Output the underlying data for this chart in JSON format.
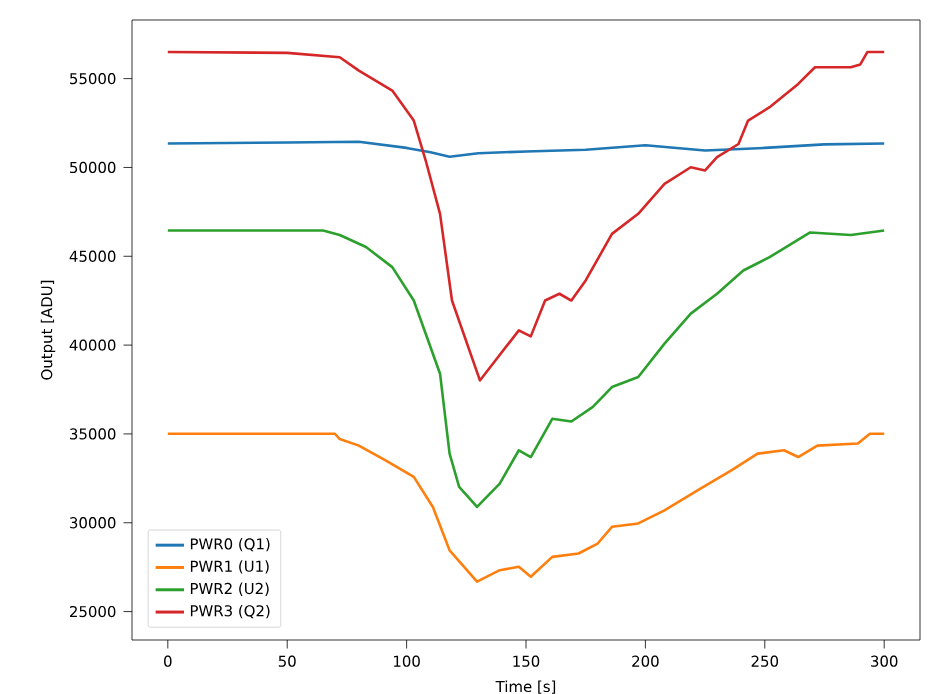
{
  "chart_data": {
    "type": "line",
    "xlabel": "Time [s]",
    "ylabel": "Output [ADU]",
    "xlim": [
      -15,
      315
    ],
    "ylim": [
      23400,
      58300
    ],
    "xticks": [
      0,
      50,
      100,
      150,
      200,
      250,
      300
    ],
    "yticks": [
      25000,
      30000,
      35000,
      40000,
      45000,
      50000,
      55000
    ],
    "legend": "bottom left",
    "grid": false,
    "series": [
      {
        "name": "PWR0 (Q1)",
        "color": "#1f77b4",
        "x": [
          0,
          50,
          80,
          100,
          110,
          118,
          130,
          150,
          175,
          200,
          225,
          250,
          275,
          300
        ],
        "values": [
          51350,
          51400,
          51450,
          51100,
          50850,
          50600,
          50800,
          50900,
          51000,
          51250,
          50950,
          51100,
          51300,
          51350
        ]
      },
      {
        "name": "PWR1 (U1)",
        "color": "#ff7f0e",
        "x": [
          0,
          70,
          72,
          80,
          91,
          103,
          111,
          118,
          129.5,
          139,
          147,
          152,
          161,
          172,
          180,
          186,
          197,
          208,
          222,
          236,
          247,
          258,
          264,
          272,
          289,
          294,
          300
        ],
        "values": [
          35010,
          35010,
          34710,
          34340,
          33520,
          32580,
          30890,
          28450,
          26690,
          27330,
          27520,
          26960,
          28080,
          28270,
          28830,
          29770,
          29960,
          30700,
          31830,
          32950,
          33890,
          34080,
          33700,
          34340,
          34460,
          35010,
          35010
        ]
      },
      {
        "name": "PWR2 (U2)",
        "color": "#2ca02c",
        "x": [
          0,
          65,
          72,
          83,
          94,
          103,
          108,
          114,
          118,
          122,
          129.5,
          139,
          147,
          152,
          161,
          169,
          178,
          186,
          197,
          208,
          219,
          230,
          241,
          252,
          269,
          286,
          300
        ],
        "values": [
          46450,
          46450,
          46200,
          45520,
          44390,
          42510,
          40640,
          38390,
          33890,
          32020,
          30890,
          32200,
          34080,
          33700,
          35850,
          35700,
          36520,
          37640,
          38200,
          40080,
          41770,
          42890,
          44200,
          44950,
          46340,
          46200,
          46450
        ]
      },
      {
        "name": "PWR3 (Q2)",
        "color": "#d62728",
        "x": [
          0,
          50,
          72,
          80,
          94,
          103,
          108,
          114,
          119,
          130.7,
          147,
          152,
          158,
          164,
          169,
          175,
          186,
          197,
          208,
          219,
          225,
          230,
          239,
          243,
          252,
          264,
          271,
          286,
          290,
          293,
          300
        ],
        "values": [
          56500,
          56450,
          56200,
          55450,
          54330,
          52640,
          50390,
          47390,
          42510,
          38010,
          40830,
          40490,
          42510,
          42890,
          42510,
          43640,
          46260,
          47390,
          49070,
          50010,
          49830,
          50580,
          51320,
          52640,
          53390,
          54700,
          55640,
          55640,
          55800,
          56500,
          56500
        ]
      }
    ]
  }
}
